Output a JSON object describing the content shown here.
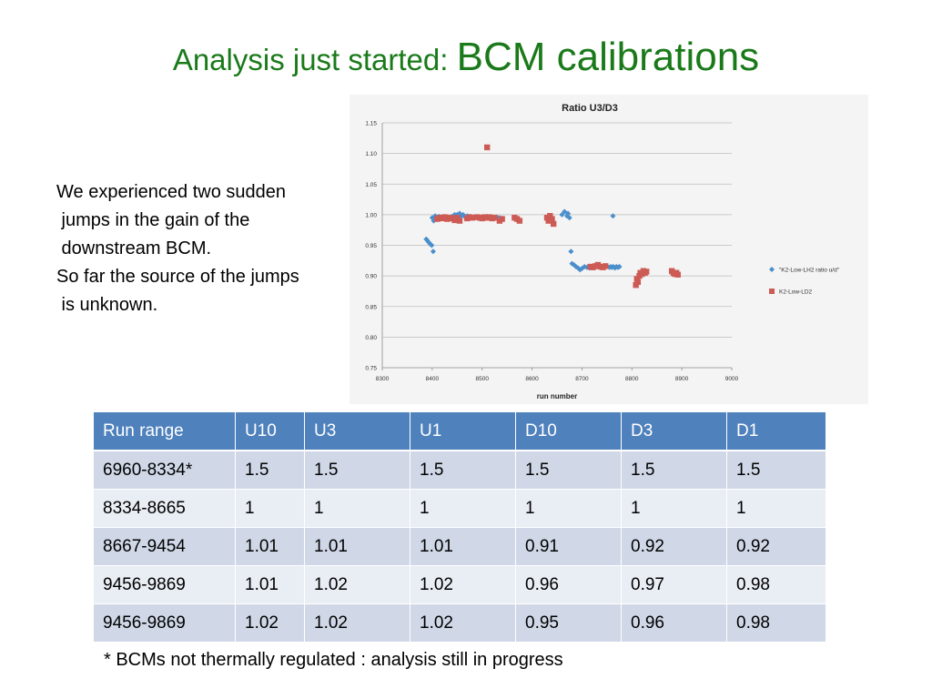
{
  "title": {
    "part1": "Analysis just started: ",
    "part2": "BCM calibrations"
  },
  "body": {
    "lines": [
      "We experienced two sudden",
      " jumps in the gain of the",
      " downstream BCM.",
      "So far the source of the jumps",
      " is unknown."
    ]
  },
  "chart_data": {
    "type": "scatter",
    "title": "Ratio U3/D3",
    "xlabel": "run number",
    "ylabel": "",
    "xlim": [
      8300,
      9000
    ],
    "ylim": [
      0.75,
      1.15
    ],
    "xticks": [
      "8300",
      "8400",
      "8500",
      "8600",
      "8700",
      "8800",
      "8900",
      "9000"
    ],
    "yticks": [
      "0.75",
      "0.80",
      "0.85",
      "0.90",
      "0.95",
      "1.00",
      "1.05",
      "1.10",
      "1.15"
    ],
    "grid": "horizontal",
    "legend_position": "right",
    "series": [
      {
        "name": "\"K2-Low-LH2 ratio u/d\"",
        "color": "#4a8fcc",
        "marker": "diamond",
        "points": [
          [
            8388,
            0.96
          ],
          [
            8390,
            0.958
          ],
          [
            8393,
            0.955
          ],
          [
            8396,
            0.952
          ],
          [
            8399,
            0.95
          ],
          [
            8402,
            0.94
          ],
          [
            8400,
            0.995
          ],
          [
            8403,
            0.99
          ],
          [
            8406,
            0.998
          ],
          [
            8410,
            0.995
          ],
          [
            8414,
            0.997
          ],
          [
            8440,
            0.997
          ],
          [
            8445,
            1.0
          ],
          [
            8450,
            1.0
          ],
          [
            8455,
            1.002
          ],
          [
            8458,
            0.998
          ],
          [
            8462,
            1.0
          ],
          [
            8466,
            0.996
          ],
          [
            8470,
            0.998
          ],
          [
            8475,
            0.997
          ],
          [
            8480,
            0.995
          ],
          [
            8510,
            0.997
          ],
          [
            8520,
            0.995
          ],
          [
            8525,
            0.994
          ],
          [
            8530,
            0.996
          ],
          [
            8535,
            0.995
          ],
          [
            8540,
            0.994
          ],
          [
            8660,
            1.0
          ],
          [
            8665,
            1.005
          ],
          [
            8670,
            0.998
          ],
          [
            8672,
            1.002
          ],
          [
            8675,
            0.995
          ],
          [
            8678,
            0.94
          ],
          [
            8680,
            0.92
          ],
          [
            8684,
            0.918
          ],
          [
            8688,
            0.915
          ],
          [
            8692,
            0.913
          ],
          [
            8696,
            0.91
          ],
          [
            8700,
            0.912
          ],
          [
            8705,
            0.915
          ],
          [
            8710,
            0.914
          ],
          [
            8715,
            0.913
          ],
          [
            8720,
            0.915
          ],
          [
            8725,
            0.914
          ],
          [
            8730,
            0.916
          ],
          [
            8745,
            0.915
          ],
          [
            8750,
            0.916
          ],
          [
            8755,
            0.914
          ],
          [
            8758,
            0.915
          ],
          [
            8760,
            0.914
          ],
          [
            8763,
            0.915
          ],
          [
            8766,
            0.913
          ],
          [
            8769,
            0.915
          ],
          [
            8772,
            0.914
          ],
          [
            8775,
            0.915
          ],
          [
            8762,
            0.998
          ],
          [
            8880,
            0.905
          ],
          [
            8883,
            0.907
          ],
          [
            8886,
            0.905
          ]
        ]
      },
      {
        "name": "K2-Low-LD2",
        "color": "#cd5b55",
        "marker": "square",
        "points": [
          [
            8410,
            0.993
          ],
          [
            8415,
            0.995
          ],
          [
            8420,
            0.994
          ],
          [
            8425,
            0.996
          ],
          [
            8430,
            0.993
          ],
          [
            8435,
            0.995
          ],
          [
            8440,
            0.994
          ],
          [
            8445,
            0.991
          ],
          [
            8450,
            0.995
          ],
          [
            8455,
            0.99
          ],
          [
            8470,
            0.994
          ],
          [
            8475,
            0.996
          ],
          [
            8480,
            0.995
          ],
          [
            8490,
            0.996
          ],
          [
            8495,
            0.995
          ],
          [
            8500,
            0.994
          ],
          [
            8505,
            0.996
          ],
          [
            8510,
            0.995
          ],
          [
            8515,
            0.996
          ],
          [
            8520,
            0.994
          ],
          [
            8525,
            0.995
          ],
          [
            8535,
            0.99
          ],
          [
            8540,
            0.993
          ],
          [
            8510,
            1.11
          ],
          [
            8565,
            0.995
          ],
          [
            8570,
            0.993
          ],
          [
            8575,
            0.99
          ],
          [
            8630,
            0.995
          ],
          [
            8633,
            0.99
          ],
          [
            8636,
            0.998
          ],
          [
            8640,
            0.993
          ],
          [
            8643,
            0.985
          ],
          [
            8717,
            0.915
          ],
          [
            8722,
            0.914
          ],
          [
            8727,
            0.916
          ],
          [
            8732,
            0.918
          ],
          [
            8737,
            0.915
          ],
          [
            8742,
            0.914
          ],
          [
            8747,
            0.916
          ],
          [
            8808,
            0.885
          ],
          [
            8810,
            0.895
          ],
          [
            8812,
            0.89
          ],
          [
            8815,
            0.9
          ],
          [
            8817,
            0.905
          ],
          [
            8820,
            0.903
          ],
          [
            8823,
            0.908
          ],
          [
            8826,
            0.905
          ],
          [
            8829,
            0.907
          ],
          [
            8880,
            0.908
          ],
          [
            8883,
            0.905
          ],
          [
            8886,
            0.903
          ],
          [
            8889,
            0.905
          ],
          [
            8892,
            0.902
          ]
        ]
      }
    ]
  },
  "table": {
    "headers": [
      "Run range",
      "U10",
      "U3",
      "U1",
      "D10",
      "D3",
      "D1"
    ],
    "rows": [
      [
        "6960-8334*",
        "1.5",
        "1.5",
        "1.5",
        "1.5",
        "1.5",
        "1.5"
      ],
      [
        "8334-8665",
        "1",
        "1",
        "1",
        "1",
        "1",
        "1"
      ],
      [
        "8667-9454",
        "1.01",
        "1.01",
        "1.01",
        "0.91",
        "0.92",
        "0.92"
      ],
      [
        "9456-9869",
        "1.01",
        "1.02",
        "1.02",
        "0.96",
        "0.97",
        "0.98"
      ],
      [
        "9456-9869",
        "1.02",
        "1.02",
        "1.02",
        "0.95",
        "0.96",
        "0.98"
      ]
    ]
  },
  "footnote": "* BCMs not thermally regulated : analysis still in progress"
}
